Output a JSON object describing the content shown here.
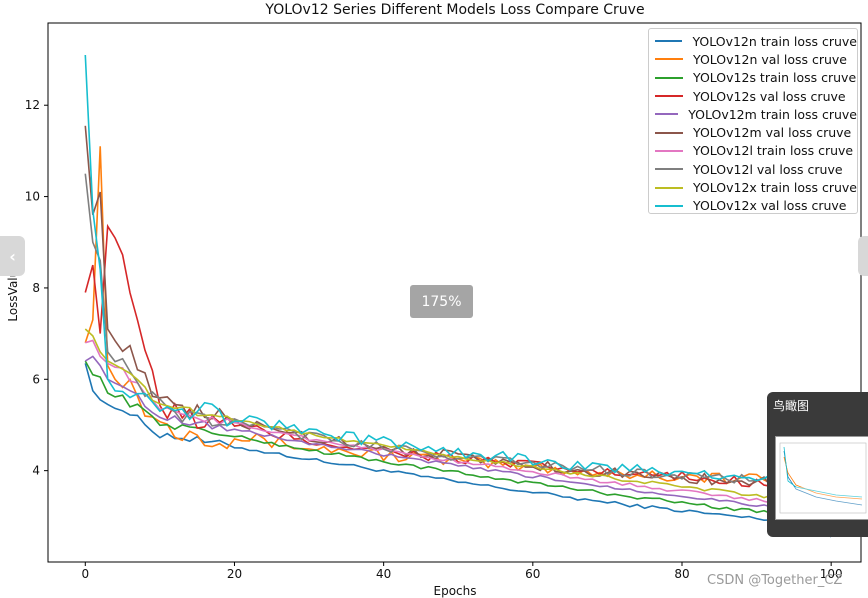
{
  "chart_data": {
    "type": "line",
    "title": "YOLOv12 Series Different Models Loss Compare Cruve",
    "xlabel": "Epochs",
    "ylabel": "LossValue",
    "xlim": [
      -5,
      104
    ],
    "ylim": [
      2.0,
      13.8
    ],
    "xticks": [
      0,
      20,
      40,
      60,
      80,
      100
    ],
    "yticks": [
      4,
      6,
      8,
      10,
      12
    ],
    "grid": false,
    "legend_position": "top-right",
    "series": [
      {
        "name": "YOLOv12n train loss cruve",
        "color": "#1f77b4",
        "start": [
          6.35,
          5.75,
          5.55,
          5.45
        ],
        "end": 2.55,
        "mid": [
          4.8,
          4.25,
          3.75,
          3.3,
          2.95
        ],
        "noise": 0.04
      },
      {
        "name": "YOLOv12n val loss cruve",
        "color": "#ff7f0e",
        "start": [
          6.8,
          7.3,
          11.1,
          6.3
        ],
        "end": 3.65,
        "mid": [
          5.0,
          4.5,
          4.2,
          3.95,
          3.8
        ],
        "noise": 0.14
      },
      {
        "name": "YOLOv12s train loss cruve",
        "color": "#2ca02c",
        "start": [
          6.4,
          6.1,
          6.05,
          5.7
        ],
        "end": 2.65,
        "mid": [
          5.05,
          4.45,
          3.95,
          3.5,
          3.1
        ],
        "noise": 0.04
      },
      {
        "name": "YOLOv12s val loss cruve",
        "color": "#d62728",
        "start": [
          7.9,
          8.5,
          7.0,
          9.35
        ],
        "end": 3.6,
        "mid": [
          5.3,
          4.65,
          4.25,
          3.95,
          3.75
        ],
        "noise": 0.12
      },
      {
        "name": "YOLOv12m train loss cruve",
        "color": "#9467bd",
        "start": [
          6.4,
          6.5,
          6.3,
          6.0
        ],
        "end": 2.75,
        "mid": [
          5.2,
          4.6,
          4.1,
          3.65,
          3.25
        ],
        "noise": 0.04
      },
      {
        "name": "YOLOv12m val loss cruve",
        "color": "#8c564b",
        "start": [
          11.55,
          9.6,
          10.1,
          7.1
        ],
        "end": 3.6,
        "mid": [
          5.4,
          4.75,
          4.3,
          3.95,
          3.75
        ],
        "noise": 0.12
      },
      {
        "name": "YOLOv12l train loss cruve",
        "color": "#e377c2",
        "start": [
          6.8,
          6.85,
          6.5,
          6.35
        ],
        "end": 2.9,
        "mid": [
          5.35,
          4.7,
          4.2,
          3.75,
          3.35
        ],
        "noise": 0.04
      },
      {
        "name": "YOLOv12l val loss cruve",
        "color": "#7f7f7f",
        "start": [
          10.5,
          9.0,
          8.6,
          6.6
        ],
        "end": 3.7,
        "mid": [
          5.35,
          4.75,
          4.3,
          4.0,
          3.8
        ],
        "noise": 0.1
      },
      {
        "name": "YOLOv12x train loss cruve",
        "color": "#bcbd22",
        "start": [
          7.1,
          6.95,
          6.6,
          6.4
        ],
        "end": 3.0,
        "mid": [
          5.45,
          4.8,
          4.3,
          3.85,
          3.45
        ],
        "noise": 0.04
      },
      {
        "name": "YOLOv12x val loss cruve",
        "color": "#17becf",
        "start": [
          13.1,
          9.7,
          8.4,
          6.0
        ],
        "end": 3.75,
        "mid": [
          5.5,
          4.85,
          4.4,
          4.05,
          3.85
        ],
        "noise": 0.12
      }
    ]
  },
  "viewer": {
    "zoom_label": "175%",
    "prev_icon": "‹",
    "next_icon": "›",
    "overview_title": "鸟瞰图",
    "watermark": "CSDN @Together_CZ"
  }
}
